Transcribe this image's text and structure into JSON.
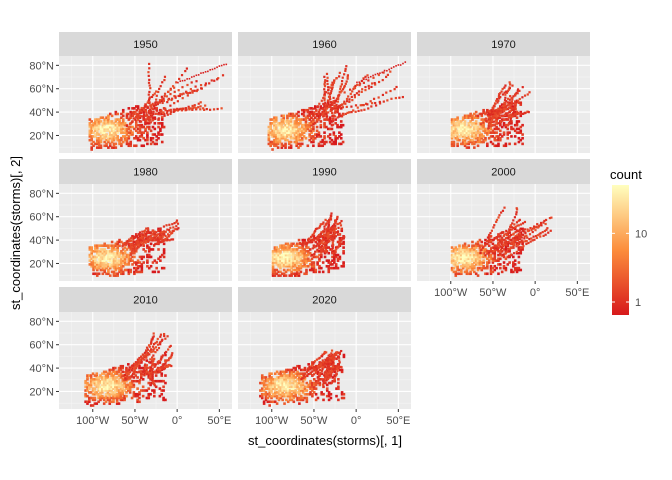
{
  "chart_data": {
    "type": "heatmap",
    "facet_by": "decade",
    "facets": [
      "1950",
      "1960",
      "1970",
      "1980",
      "1990",
      "2000",
      "2010",
      "2020"
    ],
    "xlabel": "st_coordinates(storms)[, 1]",
    "ylabel": "st_coordinates(storms)[, 2]",
    "x_ticks": [
      {
        "value": -100,
        "label": "100°W"
      },
      {
        "value": -50,
        "label": "50°W"
      },
      {
        "value": 0,
        "label": "0°"
      },
      {
        "value": 50,
        "label": "50°E"
      }
    ],
    "y_ticks": [
      {
        "value": 20,
        "label": "20°N"
      },
      {
        "value": 40,
        "label": "40°N"
      },
      {
        "value": 60,
        "label": "60°N"
      },
      {
        "value": 80,
        "label": "80°N"
      }
    ],
    "xlim": [
      -140,
      65
    ],
    "ylim": [
      5,
      88
    ],
    "legend": {
      "title": "count",
      "scale": "log",
      "ticks": [
        {
          "value": 1,
          "label": "1"
        },
        {
          "value": 10,
          "label": "10"
        }
      ],
      "range": [
        1,
        40
      ],
      "low_color": "#d7191c",
      "mid_color": "#fc8d3c",
      "high_color": "#ffffbf",
      "position": "right"
    },
    "panel_extents": {
      "1950": {
        "x": [
          -105,
          60
        ],
        "y": [
          8,
          82
        ],
        "arm": "long-northeast"
      },
      "1960": {
        "x": [
          -105,
          60
        ],
        "y": [
          8,
          83
        ],
        "arm": "long-northeast"
      },
      "1970": {
        "x": [
          -100,
          0
        ],
        "y": [
          8,
          68
        ],
        "arm": "short"
      },
      "1980": {
        "x": [
          -105,
          5
        ],
        "y": [
          8,
          58
        ],
        "arm": "short"
      },
      "1990": {
        "x": [
          -100,
          -10
        ],
        "y": [
          8,
          65
        ],
        "arm": "short"
      },
      "2000": {
        "x": [
          -100,
          25
        ],
        "y": [
          8,
          68
        ],
        "arm": "short"
      },
      "2010": {
        "x": [
          -110,
          0
        ],
        "y": [
          8,
          70
        ],
        "arm": "short"
      },
      "2020": {
        "x": [
          -115,
          -10
        ],
        "y": [
          8,
          55
        ],
        "arm": "short"
      }
    },
    "grid": true,
    "panel_background": "#ebebeb",
    "strip_background": "#d9d9d9"
  }
}
